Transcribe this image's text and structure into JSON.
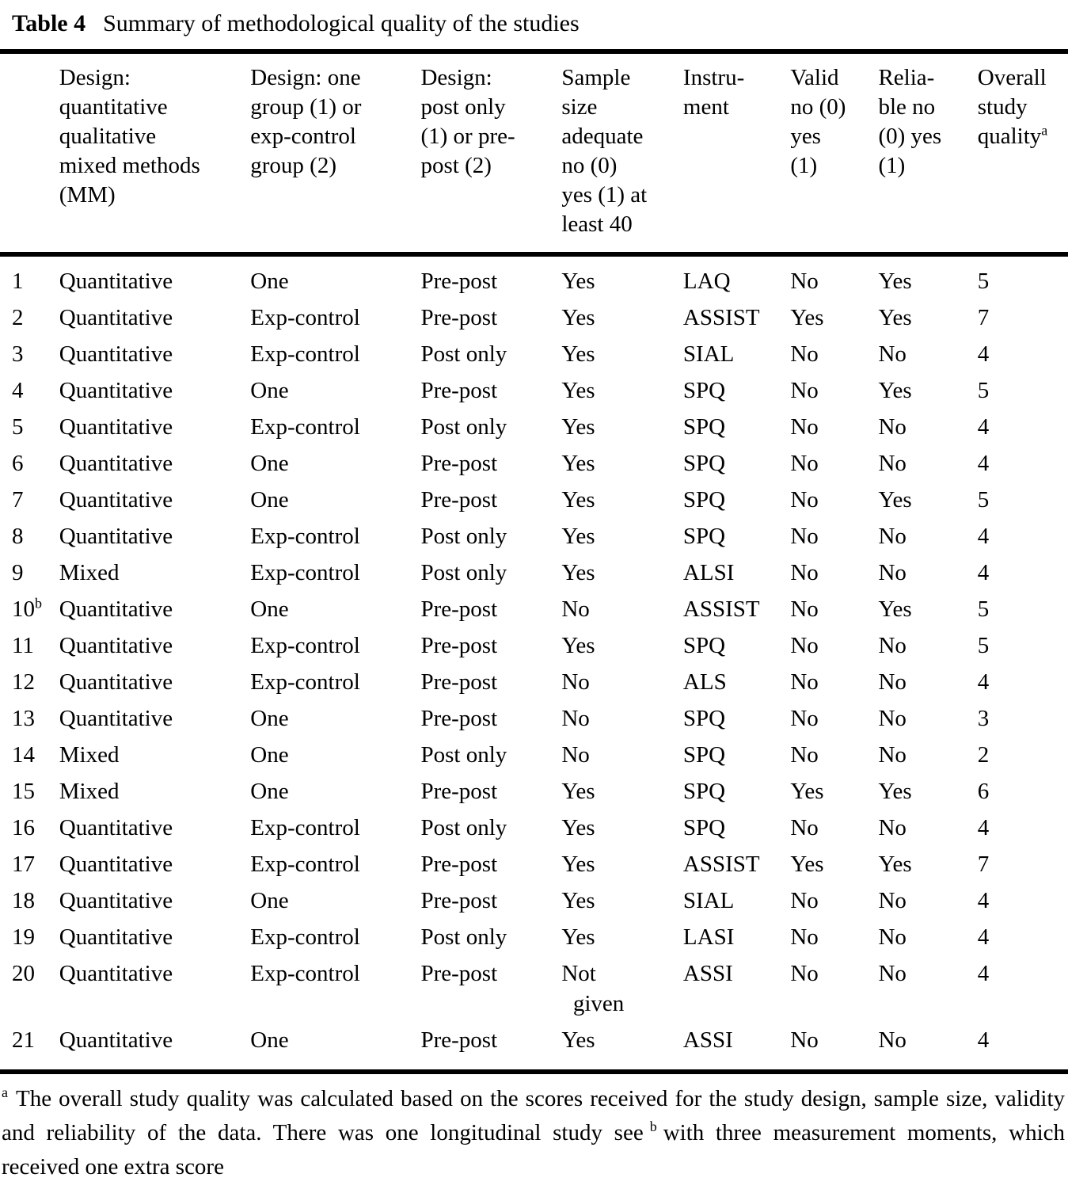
{
  "page": {
    "background_color": "#ffffff",
    "text_color": "#000000"
  },
  "table": {
    "label": "Table 4",
    "title": "Summary of methodological quality of the studies",
    "headers": {
      "id": "",
      "design_type": "Design:\nquantitative\nqualitative\nmixed methods\n(MM)",
      "design_group": "Design: one\ngroup (1) or\nexp-control\ngroup (2)",
      "design_timing": "Design:\npost only\n(1) or pre-\npost (2)",
      "sample": "Sample\nsize\nadequate\nno (0)\nyes (1) at\nleast 40",
      "instrument": "Instru-\nment",
      "valid": "Valid\nno (0)\nyes\n(1)",
      "reliable": "Relia-\nble no\n(0) yes\n(1)",
      "quality": "Overall\nstudy\nquality",
      "quality_sup": "a"
    },
    "rows": [
      {
        "id": "1",
        "design_type": "Quantitative",
        "design_group": "One",
        "design_timing": "Pre-post",
        "sample": "Yes",
        "instrument": "LAQ",
        "valid": "No",
        "reliable": "Yes",
        "quality": "5"
      },
      {
        "id": "2",
        "design_type": "Quantitative",
        "design_group": "Exp-control",
        "design_timing": "Pre-post",
        "sample": "Yes",
        "instrument": "ASSIST",
        "valid": "Yes",
        "reliable": "Yes",
        "quality": "7"
      },
      {
        "id": "3",
        "design_type": "Quantitative",
        "design_group": "Exp-control",
        "design_timing": "Post only",
        "sample": "Yes",
        "instrument": "SIAL",
        "valid": "No",
        "reliable": "No",
        "quality": "4"
      },
      {
        "id": "4",
        "design_type": "Quantitative",
        "design_group": "One",
        "design_timing": "Pre-post",
        "sample": "Yes",
        "instrument": "SPQ",
        "valid": "No",
        "reliable": "Yes",
        "quality": "5"
      },
      {
        "id": "5",
        "design_type": "Quantitative",
        "design_group": "Exp-control",
        "design_timing": "Post only",
        "sample": "Yes",
        "instrument": "SPQ",
        "valid": "No",
        "reliable": "No",
        "quality": "4"
      },
      {
        "id": "6",
        "design_type": "Quantitative",
        "design_group": "One",
        "design_timing": "Pre-post",
        "sample": "Yes",
        "instrument": "SPQ",
        "valid": "No",
        "reliable": "No",
        "quality": "4"
      },
      {
        "id": "7",
        "design_type": "Quantitative",
        "design_group": "One",
        "design_timing": "Pre-post",
        "sample": "Yes",
        "instrument": "SPQ",
        "valid": "No",
        "reliable": "Yes",
        "quality": "5"
      },
      {
        "id": "8",
        "design_type": "Quantitative",
        "design_group": "Exp-control",
        "design_timing": "Post only",
        "sample": "Yes",
        "instrument": "SPQ",
        "valid": "No",
        "reliable": "No",
        "quality": "4"
      },
      {
        "id": "9",
        "design_type": "Mixed",
        "design_group": "Exp-control",
        "design_timing": "Post only",
        "sample": "Yes",
        "instrument": "ALSI",
        "valid": "No",
        "reliable": "No",
        "quality": "4"
      },
      {
        "id": "10",
        "id_sup": "b",
        "design_type": "Quantitative",
        "design_group": "One",
        "design_timing": "Pre-post",
        "sample": "No",
        "instrument": "ASSIST",
        "valid": "No",
        "reliable": "Yes",
        "quality": "5"
      },
      {
        "id": "11",
        "design_type": "Quantitative",
        "design_group": "Exp-control",
        "design_timing": "Pre-post",
        "sample": "Yes",
        "instrument": "SPQ",
        "valid": "No",
        "reliable": "No",
        "quality": "5"
      },
      {
        "id": "12",
        "design_type": "Quantitative",
        "design_group": "Exp-control",
        "design_timing": "Pre-post",
        "sample": "No",
        "instrument": "ALS",
        "valid": "No",
        "reliable": "No",
        "quality": "4"
      },
      {
        "id": "13",
        "design_type": "Quantitative",
        "design_group": "One",
        "design_timing": "Pre-post",
        "sample": "No",
        "instrument": "SPQ",
        "valid": "No",
        "reliable": "No",
        "quality": "3"
      },
      {
        "id": "14",
        "design_type": "Mixed",
        "design_group": "One",
        "design_timing": "Post only",
        "sample": "No",
        "instrument": "SPQ",
        "valid": "No",
        "reliable": "No",
        "quality": "2"
      },
      {
        "id": "15",
        "design_type": "Mixed",
        "design_group": "One",
        "design_timing": "Pre-post",
        "sample": "Yes",
        "instrument": "SPQ",
        "valid": "Yes",
        "reliable": "Yes",
        "quality": "6"
      },
      {
        "id": "16",
        "design_type": "Quantitative",
        "design_group": "Exp-control",
        "design_timing": "Post only",
        "sample": "Yes",
        "instrument": "SPQ",
        "valid": "No",
        "reliable": "No",
        "quality": "4"
      },
      {
        "id": "17",
        "design_type": "Quantitative",
        "design_group": "Exp-control",
        "design_timing": "Pre-post",
        "sample": "Yes",
        "instrument": "ASSIST",
        "valid": "Yes",
        "reliable": "Yes",
        "quality": "7"
      },
      {
        "id": "18",
        "design_type": "Quantitative",
        "design_group": "One",
        "design_timing": "Pre-post",
        "sample": "Yes",
        "instrument": "SIAL",
        "valid": "No",
        "reliable": "No",
        "quality": "4"
      },
      {
        "id": "19",
        "design_type": "Quantitative",
        "design_group": "Exp-control",
        "design_timing": "Post only",
        "sample": "Yes",
        "instrument": "LASI",
        "valid": "No",
        "reliable": "No",
        "quality": "4"
      },
      {
        "id": "20",
        "design_type": "Quantitative",
        "design_group": "Exp-control",
        "design_timing": "Pre-post",
        "sample": "Not\n  given",
        "instrument": "ASSI",
        "valid": "No",
        "reliable": "No",
        "quality": "4"
      },
      {
        "id": "21",
        "design_type": "Quantitative",
        "design_group": "One",
        "design_timing": "Pre-post",
        "sample": "Yes",
        "instrument": "ASSI",
        "valid": "No",
        "reliable": "No",
        "quality": "4"
      }
    ]
  },
  "footnote": {
    "sup_a": "a",
    "text_before_b": "The overall study quality was calculated based on the scores received for the study design, sample size, validity and reliability of the data. There was one longitudinal study see",
    "sup_b": "b",
    "text_after_b": "with three measurement moments, which received one extra score"
  }
}
